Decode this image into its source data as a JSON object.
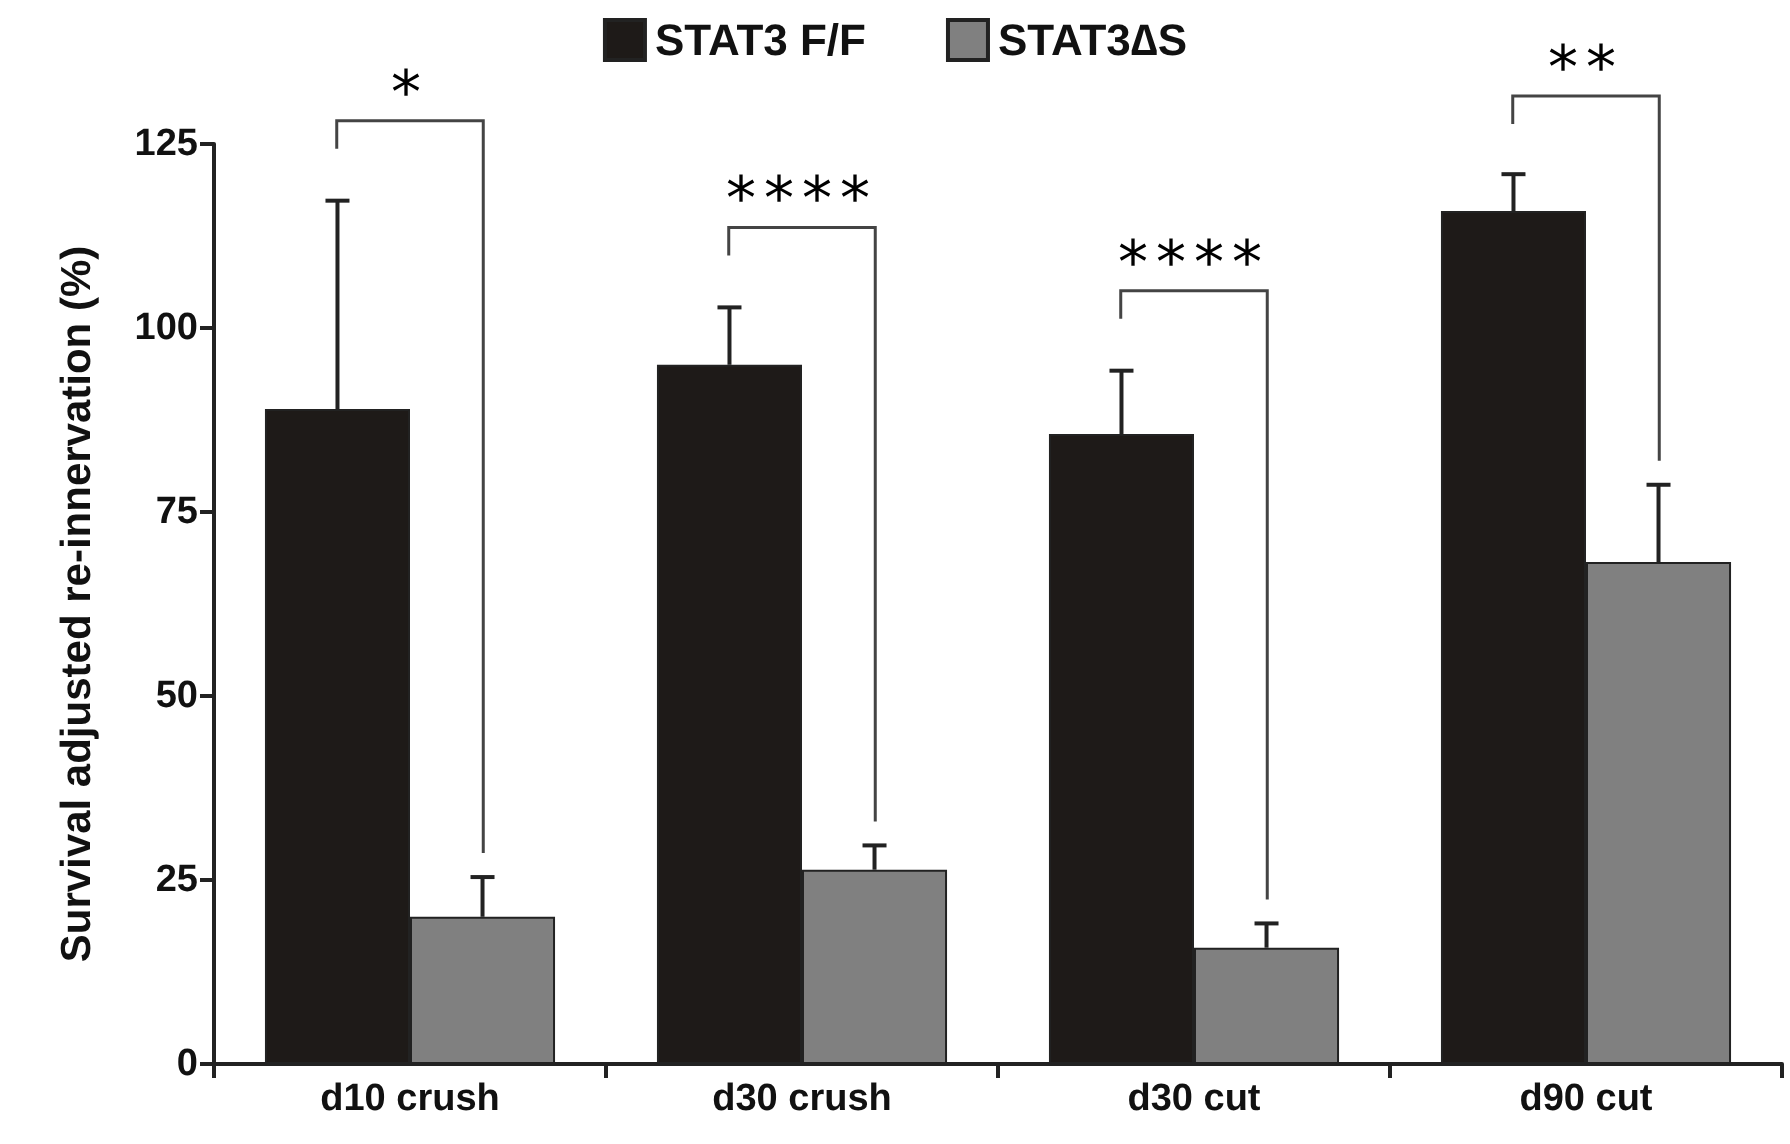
{
  "chart_data": {
    "type": "bar",
    "ylabel": "Survival adjusted re-innervation (%)",
    "categories": [
      "d10 crush",
      "d30 crush",
      "d30 cut",
      "d90 cut"
    ],
    "series": [
      {
        "name": "STAT3 F/F",
        "color": "#1e1a18",
        "values": [
          89,
          95,
          85.6,
          115.9
        ],
        "errors": [
          [
            89,
            117.3
          ],
          [
            95,
            102.8
          ],
          [
            85.6,
            94.2
          ],
          [
            115.9,
            120.9
          ]
        ]
      },
      {
        "name": "STAT3∆S",
        "color": "#808080",
        "values": [
          20,
          26.4,
          15.8,
          68.2
        ],
        "errors": [
          [
            20,
            25.4
          ],
          [
            26.4,
            29.7
          ],
          [
            15.8,
            19.1
          ],
          [
            68.2,
            78.7
          ]
        ]
      }
    ],
    "ylim": [
      0,
      125
    ],
    "yticks": [
      0,
      25,
      50,
      75,
      100,
      125
    ],
    "grid": false,
    "legend": "top",
    "annotations": [
      "*",
      "****",
      "****",
      "**"
    ]
  }
}
